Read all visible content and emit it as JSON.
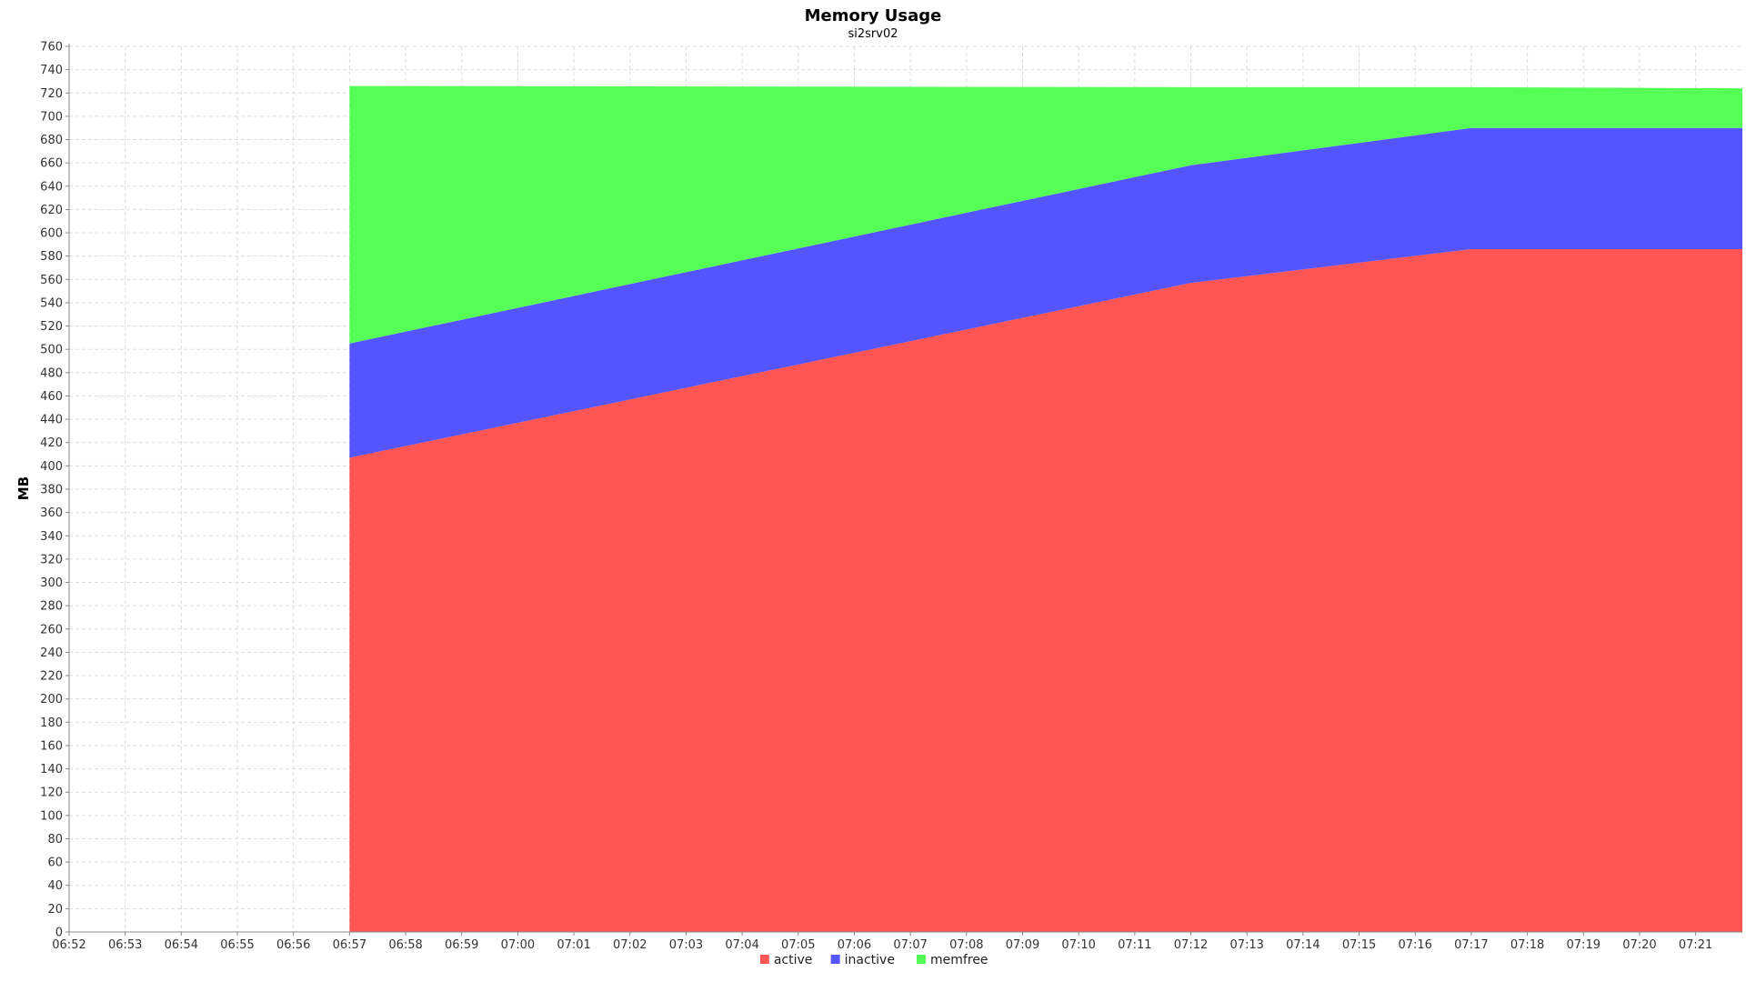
{
  "chart_data": {
    "type": "area",
    "stacked": true,
    "title": "Memory Usage",
    "subtitle": "si2srv02",
    "ylabel": "MB",
    "xlabel": "",
    "x_ticks": [
      "06:52",
      "06:53",
      "06:54",
      "06:55",
      "06:56",
      "06:57",
      "06:58",
      "06:59",
      "07:00",
      "07:01",
      "07:02",
      "07:03",
      "07:04",
      "07:05",
      "07:06",
      "07:07",
      "07:08",
      "07:09",
      "07:10",
      "07:11",
      "07:12",
      "07:13",
      "07:14",
      "07:15",
      "07:16",
      "07:17",
      "07:18",
      "07:19",
      "07:20",
      "07:21"
    ],
    "x_range": [
      "06:52",
      "07:21:50"
    ],
    "ylim": [
      0,
      760
    ],
    "y_ticks": [
      0,
      20,
      40,
      60,
      80,
      100,
      120,
      140,
      160,
      180,
      200,
      220,
      240,
      260,
      280,
      300,
      320,
      340,
      360,
      380,
      400,
      420,
      440,
      460,
      480,
      500,
      520,
      540,
      560,
      580,
      600,
      620,
      640,
      660,
      680,
      700,
      720,
      740,
      760
    ],
    "grid": true,
    "legend_position": "bottom-center",
    "x": [
      "06:57",
      "07:12",
      "07:17",
      "07:21:50"
    ],
    "series": [
      {
        "name": "active",
        "color": "#ff5555",
        "values": [
          407,
          557,
          586,
          586
        ]
      },
      {
        "name": "inactive",
        "color": "#5555ff",
        "values": [
          98,
          101,
          104,
          104
        ]
      },
      {
        "name": "memfree",
        "color": "#55ff55",
        "values": [
          221,
          67,
          35,
          34
        ]
      }
    ]
  }
}
